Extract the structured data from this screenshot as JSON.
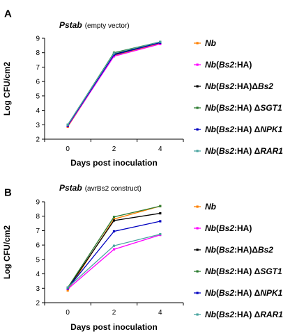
{
  "chart_data": [
    {
      "type": "line",
      "panel_label": "A",
      "title": "Pstab",
      "subtitle": "(empty vector)",
      "xlabel": "Days post inoculation",
      "ylabel": "Log CFU/cm2",
      "x": [
        0,
        2,
        4
      ],
      "xlim": [
        -1,
        5
      ],
      "ylim": [
        2,
        9
      ],
      "yticks": [
        2,
        3,
        4,
        5,
        6,
        7,
        8,
        9
      ],
      "xticks": [
        0,
        2,
        4
      ],
      "grid": false,
      "legend_position": "right",
      "series": [
        {
          "name": "Nb",
          "color": "#ff8000",
          "values": [
            2.85,
            7.8,
            8.65
          ]
        },
        {
          "name": "Nb(Bs2:HA)",
          "color": "#ff00ff",
          "values": [
            2.9,
            7.75,
            8.6
          ]
        },
        {
          "name": "Nb(Bs2:HA)ΔBs2",
          "color": "#000000",
          "values": [
            2.95,
            7.9,
            8.7
          ]
        },
        {
          "name": "Nb(Bs2:HA) ΔSGT1",
          "color": "#2e7d32",
          "values": [
            3.0,
            8.0,
            8.75
          ]
        },
        {
          "name": "Nb(Bs2:HA) ΔNPK1",
          "color": "#0000c0",
          "values": [
            2.95,
            7.85,
            8.7
          ]
        },
        {
          "name": "Nb(Bs2:HA) ΔRAR1",
          "color": "#4aa5a0",
          "values": [
            3.0,
            7.95,
            8.75
          ]
        }
      ]
    },
    {
      "type": "line",
      "panel_label": "B",
      "title": "Pstab",
      "subtitle": "(avrBs2 construct)",
      "xlabel": "Days post inoculation",
      "ylabel": "Log CFU/cm2",
      "x": [
        0,
        2,
        4
      ],
      "xlim": [
        -1,
        5
      ],
      "ylim": [
        2,
        9
      ],
      "yticks": [
        2,
        3,
        4,
        5,
        6,
        7,
        8,
        9
      ],
      "xticks": [
        0,
        2,
        4
      ],
      "grid": false,
      "legend_position": "right",
      "series": [
        {
          "name": "Nb",
          "color": "#ff8000",
          "values": [
            2.85,
            7.8,
            8.7
          ]
        },
        {
          "name": "Nb(Bs2:HA)",
          "color": "#ff00ff",
          "values": [
            2.95,
            5.7,
            6.7
          ]
        },
        {
          "name": "Nb(Bs2:HA)ΔBs2",
          "color": "#000000",
          "values": [
            3.0,
            7.7,
            8.2
          ]
        },
        {
          "name": "Nb(Bs2:HA) ΔSGT1",
          "color": "#2e7d32",
          "values": [
            3.05,
            7.95,
            8.7
          ]
        },
        {
          "name": "Nb(Bs2:HA) ΔNPK1",
          "color": "#0000c0",
          "values": [
            3.0,
            6.95,
            7.65
          ]
        },
        {
          "name": "Nb(Bs2:HA) ΔRAR1",
          "color": "#4aa5a0",
          "values": [
            3.05,
            5.95,
            6.75
          ]
        }
      ]
    }
  ]
}
